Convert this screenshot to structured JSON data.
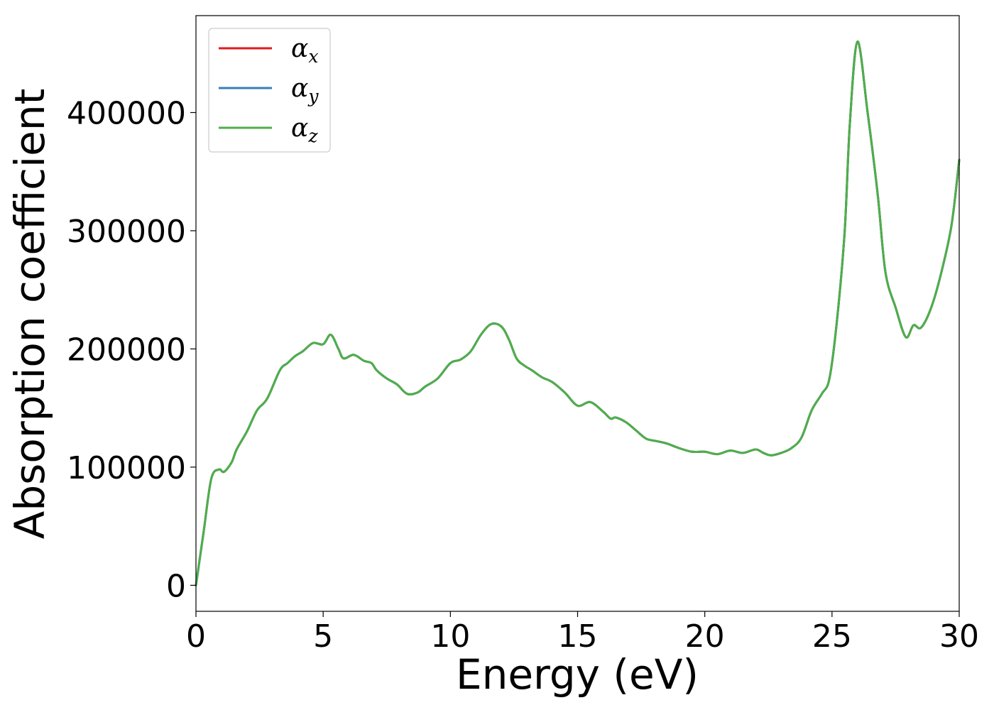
{
  "chart_data": {
    "type": "line",
    "xlabel": "Energy (eV)",
    "ylabel": "Absorption coefficient",
    "xlim": [
      0,
      30
    ],
    "ylim": [
      -22000,
      482000
    ],
    "xticks": [
      0,
      5,
      10,
      15,
      20,
      25,
      30
    ],
    "xtick_labels": [
      "0",
      "5",
      "10",
      "15",
      "20",
      "25",
      "30"
    ],
    "yticks": [
      0,
      100000,
      200000,
      300000,
      400000
    ],
    "ytick_labels": [
      "0",
      "100000",
      "200000",
      "300000",
      "400000"
    ],
    "grid": false,
    "legend_position": "top-left",
    "series": [
      {
        "name": "α",
        "subscript": "x",
        "color": "#e41a1c",
        "x": [
          0,
          0.3,
          0.6,
          0.9,
          1.1,
          1.4,
          1.6,
          2.0,
          2.4,
          2.8,
          3.3,
          3.6,
          3.9,
          4.2,
          4.6,
          5.0,
          5.3,
          5.6,
          5.8,
          6.2,
          6.6,
          6.9,
          7.1,
          7.5,
          7.9,
          8.3,
          8.7,
          9.0,
          9.5,
          10.0,
          10.4,
          10.8,
          11.2,
          11.6,
          12.0,
          12.3,
          12.6,
          12.9,
          13.2,
          13.6,
          14.0,
          14.5,
          15.0,
          15.5,
          16.0,
          16.3,
          16.5,
          16.9,
          17.3,
          17.7,
          18.1,
          18.5,
          19.0,
          19.5,
          20.0,
          20.5,
          21.0,
          21.5,
          22.0,
          22.3,
          22.6,
          23.0,
          23.4,
          23.8,
          24.2,
          24.6,
          24.9,
          25.2,
          25.5,
          25.7,
          26.0,
          26.4,
          26.8,
          27.1,
          27.5,
          27.9,
          28.2,
          28.5,
          28.9,
          29.3,
          29.7,
          30.0
        ],
        "values": [
          0,
          45000,
          90000,
          98000,
          96000,
          104000,
          115000,
          130000,
          148000,
          158000,
          182000,
          188000,
          194000,
          198000,
          205000,
          204000,
          212000,
          200000,
          192000,
          195000,
          190000,
          188000,
          182000,
          175000,
          170000,
          162000,
          163000,
          168000,
          175000,
          188000,
          191000,
          198000,
          212000,
          221000,
          219000,
          208000,
          192000,
          186000,
          182000,
          176000,
          172000,
          163000,
          152000,
          155000,
          147000,
          141000,
          142000,
          138000,
          131000,
          124000,
          122000,
          120000,
          116000,
          113000,
          113000,
          111000,
          114000,
          112000,
          115000,
          112000,
          110000,
          112000,
          116000,
          125000,
          148000,
          162000,
          175000,
          225000,
          300000,
          390000,
          460000,
          400000,
          330000,
          265000,
          235000,
          210000,
          220000,
          218000,
          235000,
          265000,
          305000,
          360000
        ]
      },
      {
        "name": "α",
        "subscript": "y",
        "color": "#377eb8",
        "x": [
          0,
          0.3,
          0.6,
          0.9,
          1.1,
          1.4,
          1.6,
          2.0,
          2.4,
          2.8,
          3.3,
          3.6,
          3.9,
          4.2,
          4.6,
          5.0,
          5.3,
          5.6,
          5.8,
          6.2,
          6.6,
          6.9,
          7.1,
          7.5,
          7.9,
          8.3,
          8.7,
          9.0,
          9.5,
          10.0,
          10.4,
          10.8,
          11.2,
          11.6,
          12.0,
          12.3,
          12.6,
          12.9,
          13.2,
          13.6,
          14.0,
          14.5,
          15.0,
          15.5,
          16.0,
          16.3,
          16.5,
          16.9,
          17.3,
          17.7,
          18.1,
          18.5,
          19.0,
          19.5,
          20.0,
          20.5,
          21.0,
          21.5,
          22.0,
          22.3,
          22.6,
          23.0,
          23.4,
          23.8,
          24.2,
          24.6,
          24.9,
          25.2,
          25.5,
          25.7,
          26.0,
          26.4,
          26.8,
          27.1,
          27.5,
          27.9,
          28.2,
          28.5,
          28.9,
          29.3,
          29.7,
          30.0
        ],
        "values": [
          0,
          45000,
          90000,
          98000,
          96000,
          104000,
          115000,
          130000,
          148000,
          158000,
          182000,
          188000,
          194000,
          198000,
          205000,
          204000,
          212000,
          200000,
          192000,
          195000,
          190000,
          188000,
          182000,
          175000,
          170000,
          162000,
          163000,
          168000,
          175000,
          188000,
          191000,
          198000,
          212000,
          221000,
          219000,
          208000,
          192000,
          186000,
          182000,
          176000,
          172000,
          163000,
          152000,
          155000,
          147000,
          141000,
          142000,
          138000,
          131000,
          124000,
          122000,
          120000,
          116000,
          113000,
          113000,
          111000,
          114000,
          112000,
          115000,
          112000,
          110000,
          112000,
          116000,
          125000,
          148000,
          162000,
          175000,
          225000,
          300000,
          390000,
          460000,
          400000,
          330000,
          265000,
          235000,
          210000,
          220000,
          218000,
          235000,
          265000,
          305000,
          360000
        ]
      },
      {
        "name": "α",
        "subscript": "z",
        "color": "#4daf4a",
        "x": [
          0,
          0.3,
          0.6,
          0.9,
          1.1,
          1.4,
          1.6,
          2.0,
          2.4,
          2.8,
          3.3,
          3.6,
          3.9,
          4.2,
          4.6,
          5.0,
          5.3,
          5.6,
          5.8,
          6.2,
          6.6,
          6.9,
          7.1,
          7.5,
          7.9,
          8.3,
          8.7,
          9.0,
          9.5,
          10.0,
          10.4,
          10.8,
          11.2,
          11.6,
          12.0,
          12.3,
          12.6,
          12.9,
          13.2,
          13.6,
          14.0,
          14.5,
          15.0,
          15.5,
          16.0,
          16.3,
          16.5,
          16.9,
          17.3,
          17.7,
          18.1,
          18.5,
          19.0,
          19.5,
          20.0,
          20.5,
          21.0,
          21.5,
          22.0,
          22.3,
          22.6,
          23.0,
          23.4,
          23.8,
          24.2,
          24.6,
          24.9,
          25.2,
          25.5,
          25.7,
          26.0,
          26.4,
          26.8,
          27.1,
          27.5,
          27.9,
          28.2,
          28.5,
          28.9,
          29.3,
          29.7,
          30.0
        ],
        "values": [
          0,
          45000,
          90000,
          98000,
          96000,
          104000,
          115000,
          130000,
          148000,
          158000,
          182000,
          188000,
          194000,
          198000,
          205000,
          204000,
          212000,
          200000,
          192000,
          195000,
          190000,
          188000,
          182000,
          175000,
          170000,
          162000,
          163000,
          168000,
          175000,
          188000,
          191000,
          198000,
          212000,
          221000,
          219000,
          208000,
          192000,
          186000,
          182000,
          176000,
          172000,
          163000,
          152000,
          155000,
          147000,
          141000,
          142000,
          138000,
          131000,
          124000,
          122000,
          120000,
          116000,
          113000,
          113000,
          111000,
          114000,
          112000,
          115000,
          112000,
          110000,
          112000,
          116000,
          125000,
          148000,
          162000,
          175000,
          225000,
          300000,
          390000,
          460000,
          400000,
          330000,
          265000,
          235000,
          210000,
          220000,
          218000,
          235000,
          265000,
          305000,
          360000
        ]
      }
    ]
  }
}
